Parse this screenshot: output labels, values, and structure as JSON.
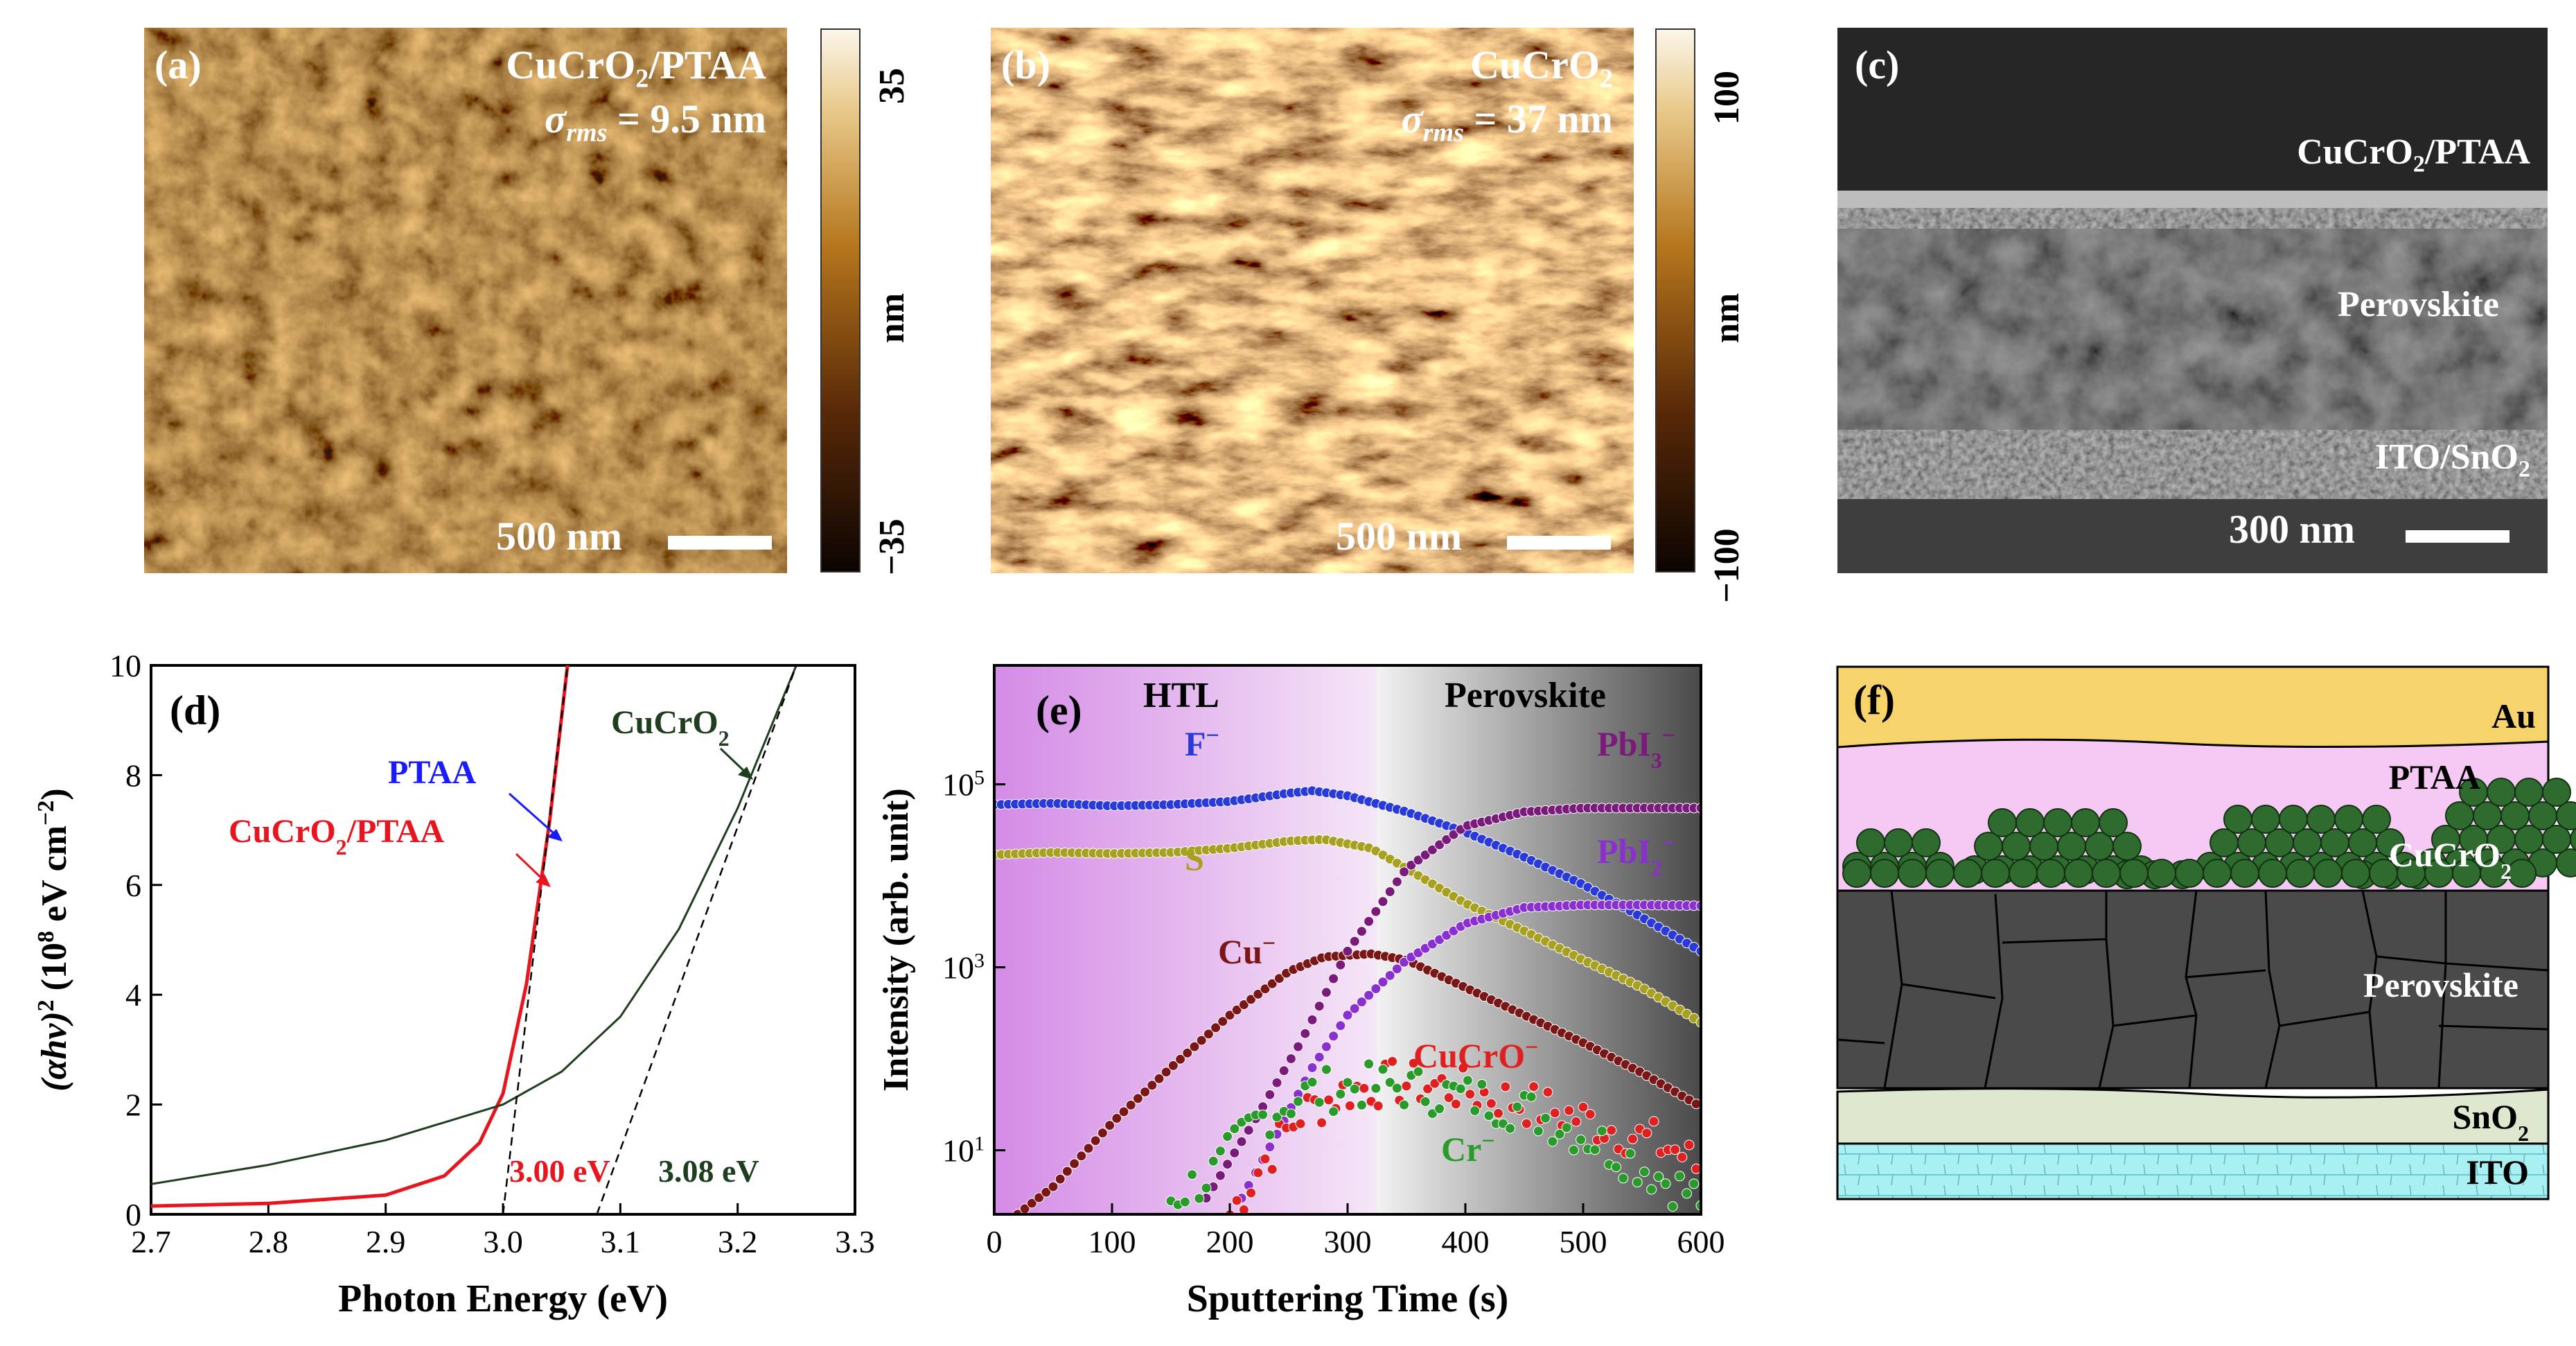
{
  "panel_a": {
    "label": "(a)",
    "sample_main": "CuCrO",
    "sample_sub": "2",
    "sample_tail": "/PTAA",
    "sigma_label": "σ",
    "sigma_sub": "rms",
    "sigma_value": " = 9.5 nm",
    "scale_text": "500 nm",
    "colorbar_max": "35",
    "colorbar_min": "−35",
    "colorbar_unit": "nm"
  },
  "panel_b": {
    "label": "(b)",
    "sample_main": "CuCrO",
    "sample_sub": "2",
    "sigma_label": "σ",
    "sigma_sub": "rms",
    "sigma_value": " = 37 nm",
    "scale_text": "500 nm",
    "colorbar_max": "100",
    "colorbar_min": "−100",
    "colorbar_unit": "nm"
  },
  "panel_c": {
    "label": "(c)",
    "layer_top_main": "CuCrO",
    "layer_top_sub": "2",
    "layer_top_tail": "/PTAA",
    "layer_mid": "Perovskite",
    "layer_bot_main": "ITO/SnO",
    "layer_bot_sub": "2",
    "scale_text": "300 nm"
  },
  "panel_d": {
    "label": "(d)",
    "xlabel": "Photon Energy (eV)",
    "ylabel_main": "(αhν)",
    "ylabel_sup": "2",
    "ylabel_units": " (10",
    "ylabel_exp": "8",
    "ylabel_units2": " eV cm",
    "ylabel_exp2": "−2",
    "ylabel_close": ")",
    "annot_ptaa": "PTAA",
    "annot_cucro2_ptaa_main": "CuCrO",
    "annot_cucro2_ptaa_sub": "2",
    "annot_cucro2_ptaa_tail": "/PTAA",
    "annot_cucro2_main": "CuCrO",
    "annot_cucro2_sub": "2",
    "gap_1": "3.00 eV",
    "gap_2": "3.08 eV"
  },
  "panel_e": {
    "label": "(e)",
    "xlabel": "Sputtering Time (s)",
    "ylabel": "Intensity (arb. unit)",
    "region_htl": "HTL",
    "region_perovskite": "Perovskite",
    "ion_f": "F",
    "ion_s": "S",
    "ion_cu": "Cu",
    "ion_pbi3_main": "PbI",
    "ion_pbi3_sub": "3",
    "ion_pbi2_main": "PbI",
    "ion_pbi2_sub": "2",
    "ion_cucro": "CuCrO",
    "ion_cr": "Cr",
    "ion_minus": "−"
  },
  "panel_f": {
    "label": "(f)",
    "layer_au": "Au",
    "layer_ptaa": "PTAA",
    "layer_cucro2_main": "CuCrO",
    "layer_cucro2_sub": "2",
    "layer_perovskite": "Perovskite",
    "layer_sno2_main": "SnO",
    "layer_sno2_sub": "2",
    "layer_ito": "ITO"
  },
  "chart_data": [
    {
      "panel": "d",
      "type": "line",
      "title": "",
      "xlabel": "Photon Energy (eV)",
      "ylabel": "(αhν)^2 (10^8 eV cm^-2)",
      "xlim": [
        2.7,
        3.3
      ],
      "ylim": [
        0,
        10
      ],
      "xticks": [
        "2.7",
        "2.8",
        "2.9",
        "3.0",
        "3.1",
        "3.2",
        "3.3"
      ],
      "yticks": [
        "0",
        "2",
        "4",
        "6",
        "8",
        "10"
      ],
      "series": [
        {
          "name": "PTAA",
          "color": "#1a1aff",
          "x": [
            2.7,
            2.8,
            2.9,
            2.95,
            2.98,
            3.0,
            3.02,
            3.04,
            3.055
          ],
          "y": [
            0.15,
            0.2,
            0.35,
            0.7,
            1.3,
            2.2,
            4.2,
            7.2,
            10
          ]
        },
        {
          "name": "CuCrO2/PTAA",
          "color": "#e8141e",
          "x": [
            2.7,
            2.8,
            2.9,
            2.95,
            2.98,
            3.0,
            3.02,
            3.04,
            3.055
          ],
          "y": [
            0.15,
            0.2,
            0.35,
            0.7,
            1.3,
            2.2,
            4.2,
            7.2,
            10
          ]
        },
        {
          "name": "CuCrO2",
          "color": "#1f3d1f",
          "x": [
            2.7,
            2.8,
            2.9,
            3.0,
            3.05,
            3.1,
            3.15,
            3.2,
            3.25
          ],
          "y": [
            0.55,
            0.9,
            1.35,
            2.0,
            2.6,
            3.6,
            5.2,
            7.4,
            10
          ]
        }
      ],
      "fits": [
        {
          "name": "tangent PTAA",
          "x": [
            3.0,
            3.055
          ],
          "y": [
            0,
            10
          ]
        },
        {
          "name": "tangent CuCrO2",
          "x": [
            3.08,
            3.25
          ],
          "y": [
            0,
            10
          ]
        }
      ],
      "bandgaps": {
        "CuCrO2/PTAA": 3.0,
        "CuCrO2": 3.08
      }
    },
    {
      "panel": "e",
      "type": "scatter",
      "title": "",
      "xlabel": "Sputtering Time (s)",
      "ylabel": "Intensity (arb. unit)",
      "xlim": [
        0,
        600
      ],
      "ylim_log10": [
        0.3,
        6.3
      ],
      "yscale": "log",
      "xticks": [
        "0",
        "100",
        "200",
        "300",
        "400",
        "500",
        "600"
      ],
      "yticks": [
        "10^1",
        "10^3",
        "10^5"
      ],
      "regions": [
        {
          "name": "HTL",
          "x": [
            0,
            325
          ]
        },
        {
          "name": "Perovskite",
          "x": [
            325,
            600
          ]
        }
      ],
      "series": [
        {
          "name": "F−",
          "color": "#2a3ad8",
          "x": [
            0,
            50,
            100,
            150,
            200,
            250,
            270,
            300,
            350,
            400,
            450,
            500,
            550,
            600
          ],
          "y": [
            60000,
            62000,
            58000,
            60000,
            65000,
            80000,
            85000,
            75000,
            50000,
            30000,
            16000,
            8000,
            3500,
            1500
          ]
        },
        {
          "name": "S−",
          "color": "#a8a020",
          "x": [
            0,
            50,
            100,
            150,
            200,
            250,
            280,
            320,
            350,
            400,
            450,
            500,
            550,
            600
          ],
          "y": [
            17000,
            18000,
            17500,
            18000,
            20000,
            24000,
            25000,
            20000,
            12000,
            5000,
            2500,
            1200,
            600,
            250
          ]
        },
        {
          "name": "Cu−",
          "color": "#7a1616",
          "x": [
            20,
            50,
            100,
            150,
            200,
            250,
            280,
            320,
            350,
            400,
            450,
            500,
            550,
            600
          ],
          "y": [
            2,
            4,
            20,
            80,
            300,
            900,
            1300,
            1400,
            1200,
            600,
            300,
            150,
            70,
            30
          ]
        },
        {
          "name": "PbI3−",
          "color": "#7a1a7a",
          "x": [
            180,
            220,
            260,
            300,
            350,
            400,
            450,
            500,
            550,
            600
          ],
          "y": [
            3,
            20,
            150,
            1500,
            12000,
            35000,
            50000,
            55000,
            55000,
            55000
          ]
        },
        {
          "name": "PbI2−",
          "color": "#8a30d0",
          "x": [
            210,
            240,
            270,
            300,
            350,
            400,
            450,
            500,
            550,
            600
          ],
          "y": [
            3,
            15,
            80,
            300,
            1200,
            3000,
            4500,
            4800,
            4800,
            4700
          ]
        },
        {
          "name": "CuCrO−",
          "color": "#e02020",
          "x": [
            200,
            230,
            260,
            300,
            340,
            380,
            420,
            460,
            500,
            540,
            580,
            600
          ],
          "y": [
            2,
            8,
            25,
            45,
            55,
            50,
            40,
            30,
            22,
            15,
            10,
            6
          ]
        },
        {
          "name": "Cr−",
          "color": "#2a9a2a",
          "x": [
            150,
            190,
            220,
            260,
            300,
            340,
            380,
            420,
            460,
            500,
            540,
            580,
            600
          ],
          "y": [
            3,
            6,
            20,
            40,
            50,
            50,
            42,
            35,
            25,
            15,
            8,
            4,
            3
          ]
        }
      ]
    }
  ]
}
